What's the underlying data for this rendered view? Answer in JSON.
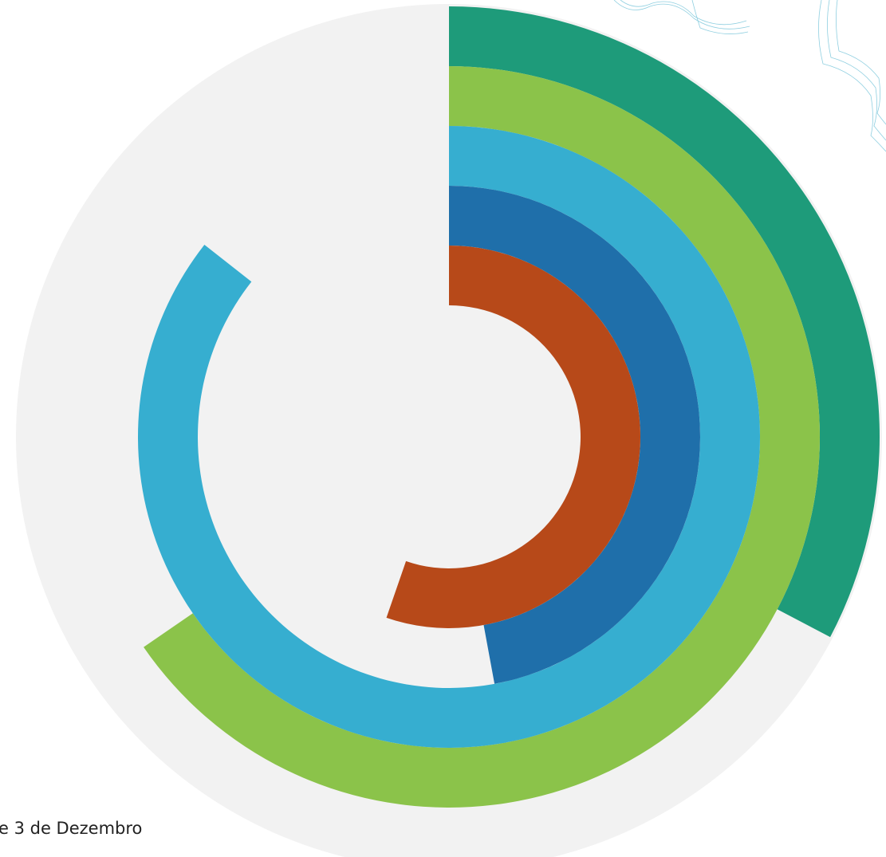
{
  "chart_data": {
    "type": "radial_bar",
    "values": [
      32.7,
      65.4,
      85.6,
      47.1,
      55.3
    ],
    "colors": [
      "#1e9b7a",
      "#8bc34a",
      "#36aed0",
      "#1f6faa",
      "#b74919"
    ],
    "xlim": [
      0,
      100
    ]
  },
  "footer": {
    "text": "e 3 de Dezembro"
  }
}
